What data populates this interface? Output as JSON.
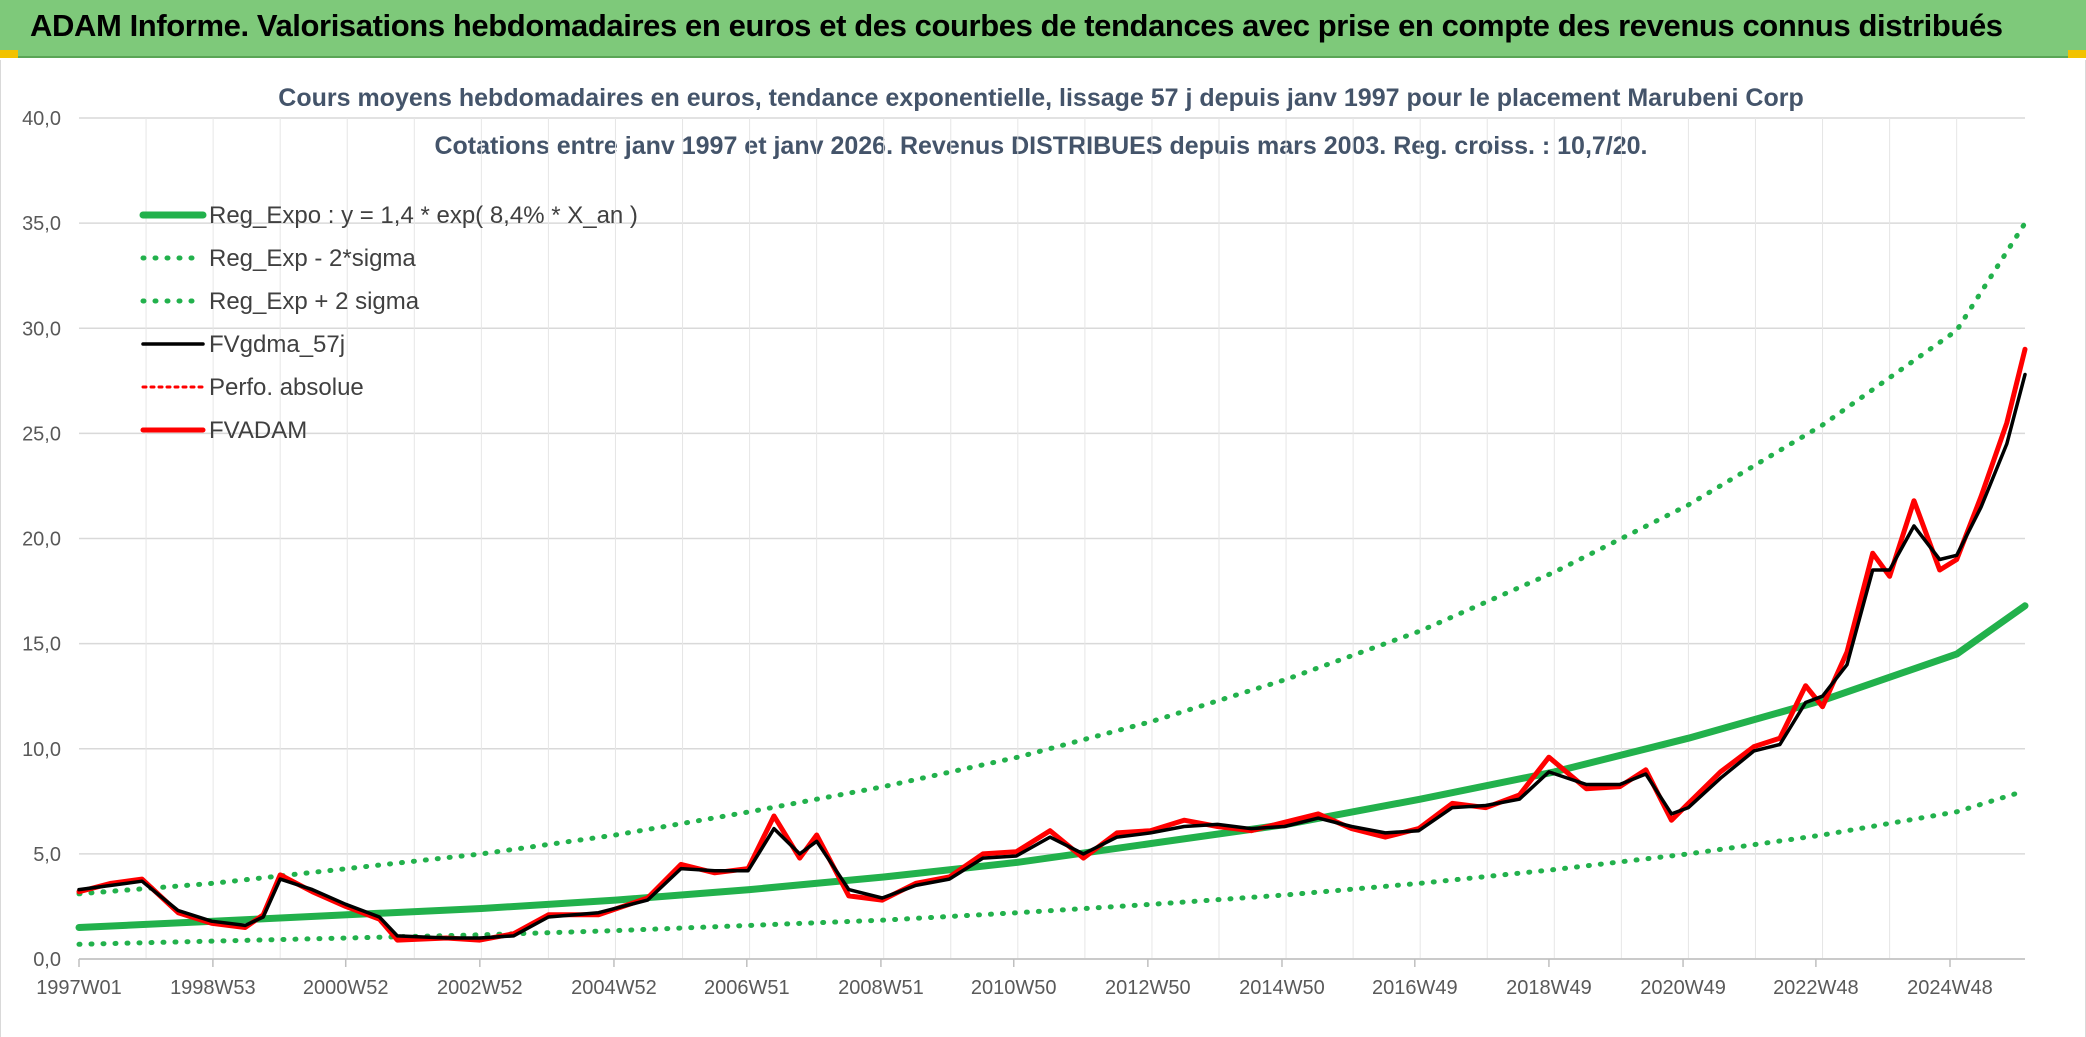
{
  "banner": {
    "title": "ADAM Informe. Valorisations hebdomadaires en euros et des courbes de tendances avec prise en compte des revenus connus distribués"
  },
  "colors": {
    "banner_bg": "#7ec97a",
    "reg_expo": "#22b14c",
    "sigma_lines": "#22b14c",
    "fvgdma": "#000000",
    "perfo": "#ff0000",
    "fvadam": "#ff0000",
    "title_text": "#44546a",
    "grid": "#d9d9d9"
  },
  "chart_data": {
    "type": "line",
    "title": "Cours moyens hebdomadaires en euros, tendance exponentielle, lissage 57 j depuis janv 1997 pour le placement Marubeni Corp",
    "subtitle": "Cotations entre janv 1997 et janv 2026. Revenus DISTRIBUES depuis mars 2003. Reg. croiss. : 10,7/20.",
    "xlabel": "",
    "ylabel": "",
    "ylim": [
      0,
      40
    ],
    "y_ticks": [
      "0,0",
      "5,0",
      "10,0",
      "15,0",
      "20,0",
      "25,0",
      "30,0",
      "35,0",
      "40,0"
    ],
    "x_range": [
      "1997W01",
      "2026W02"
    ],
    "x_ticks": [
      "1997W01",
      "1998W53",
      "2000W52",
      "2002W52",
      "2004W52",
      "2006W51",
      "2008W51",
      "2010W50",
      "2012W50",
      "2014W50",
      "2016W49",
      "2018W49",
      "2020W49",
      "2022W48",
      "2024W48"
    ],
    "grid": true,
    "legend_position": "top-left",
    "series": [
      {
        "name": "Reg_Expo : y = 1,4 * exp( 8,4% *  X_an )",
        "style": "solid-thick",
        "color": "#22b14c",
        "x": [
          "1997W01",
          "1999W01",
          "2001W01",
          "2003W01",
          "2005W01",
          "2007W01",
          "2009W01",
          "2011W01",
          "2013W01",
          "2015W01",
          "2017W01",
          "2019W01",
          "2021W01",
          "2023W01",
          "2025W01",
          "2026W02"
        ],
        "values": [
          1.5,
          1.8,
          2.1,
          2.4,
          2.8,
          3.3,
          3.9,
          4.6,
          5.5,
          6.4,
          7.6,
          8.9,
          10.5,
          12.3,
          14.5,
          16.8
        ]
      },
      {
        "name": "Reg_Exp - 2*sigma",
        "style": "dotted",
        "color": "#22b14c",
        "x": [
          "1997W01",
          "1999W01",
          "2001W01",
          "2003W01",
          "2005W01",
          "2007W01",
          "2009W01",
          "2011W01",
          "2013W01",
          "2015W01",
          "2017W01",
          "2019W01",
          "2021W01",
          "2023W01",
          "2025W01",
          "2026W02"
        ],
        "values": [
          0.7,
          0.85,
          1.0,
          1.15,
          1.35,
          1.6,
          1.85,
          2.2,
          2.6,
          3.05,
          3.6,
          4.25,
          5.0,
          5.9,
          7.0,
          8.0
        ]
      },
      {
        "name": "Reg_Exp + 2 sigma",
        "style": "dotted",
        "color": "#22b14c",
        "x": [
          "1997W01",
          "1999W01",
          "2001W01",
          "2003W01",
          "2005W01",
          "2007W01",
          "2009W01",
          "2011W01",
          "2013W01",
          "2015W01",
          "2017W01",
          "2019W01",
          "2021W01",
          "2023W01",
          "2025W01",
          "2026W02"
        ],
        "values": [
          3.1,
          3.6,
          4.3,
          5.0,
          5.9,
          7.0,
          8.2,
          9.6,
          11.3,
          13.3,
          15.6,
          18.4,
          21.6,
          25.4,
          29.9,
          35.0
        ]
      },
      {
        "name": "FVgdma_57j",
        "style": "solid",
        "color": "#000000",
        "x": [
          "1997W01",
          "1997W26",
          "1997W50",
          "1998W26",
          "1998W52",
          "1999W26",
          "1999W40",
          "2000W01",
          "2000W26",
          "2000W52",
          "2001W26",
          "2001W40",
          "2002W26",
          "2002W52",
          "2003W26",
          "2004W01",
          "2004W40",
          "2005W26",
          "2005W52",
          "2006W26",
          "2006W52",
          "2007W20",
          "2007W40",
          "2008W01",
          "2008W26",
          "2008W52",
          "2009W26",
          "2009W52",
          "2010W26",
          "2010W52",
          "2011W26",
          "2011W52",
          "2012W26",
          "2012W52",
          "2013W26",
          "2013W52",
          "2014W26",
          "2014W52",
          "2015W26",
          "2015W52",
          "2016W26",
          "2016W52",
          "2017W26",
          "2017W52",
          "2018W26",
          "2018W49",
          "2019W26",
          "2019W52",
          "2020W20",
          "2020W40",
          "2021W01",
          "2021W26",
          "2021W52",
          "2022W20",
          "2022W40",
          "2023W01",
          "2023W20",
          "2023W40",
          "2024W01",
          "2024W20",
          "2024W40",
          "2025W01",
          "2025W20",
          "2025W40",
          "2026W02"
        ],
        "values": [
          3.3,
          3.5,
          3.7,
          2.3,
          1.8,
          1.6,
          2.0,
          3.8,
          3.3,
          2.6,
          2.0,
          1.1,
          1.0,
          1.0,
          1.1,
          2.0,
          2.2,
          2.8,
          4.3,
          4.2,
          4.2,
          6.2,
          5.0,
          5.6,
          3.3,
          2.9,
          3.5,
          3.8,
          4.8,
          4.9,
          5.8,
          5.0,
          5.8,
          6.0,
          6.3,
          6.4,
          6.2,
          6.3,
          6.7,
          6.3,
          6.0,
          6.1,
          7.2,
          7.3,
          7.6,
          8.9,
          8.3,
          8.3,
          8.8,
          6.9,
          7.2,
          8.6,
          9.9,
          10.2,
          12.2,
          12.5,
          14.0,
          18.5,
          18.5,
          20.6,
          19.0,
          19.2,
          21.5,
          24.5,
          27.8
        ]
      },
      {
        "name": "Perfo. absolue",
        "style": "dotted",
        "color": "#ff0000",
        "x": [
          "1997W01",
          "1997W26",
          "1997W50",
          "1998W26",
          "1998W52",
          "1999W26",
          "1999W40",
          "2000W01",
          "2000W26",
          "2000W52",
          "2001W26",
          "2001W40",
          "2002W26",
          "2002W52",
          "2003W26",
          "2004W01",
          "2004W40",
          "2005W26",
          "2005W52",
          "2006W26",
          "2006W52",
          "2007W20",
          "2007W40",
          "2008W01",
          "2008W26",
          "2008W52",
          "2009W26",
          "2009W52",
          "2010W26",
          "2010W52",
          "2011W26",
          "2011W52",
          "2012W26",
          "2012W52",
          "2013W26",
          "2013W52",
          "2014W26",
          "2014W52",
          "2015W26",
          "2015W52",
          "2016W26",
          "2016W52",
          "2017W26",
          "2017W52",
          "2018W26",
          "2018W49",
          "2019W26",
          "2019W52",
          "2020W20",
          "2020W40",
          "2021W01",
          "2021W26",
          "2021W52",
          "2022W20",
          "2022W40",
          "2023W01",
          "2023W20",
          "2023W40",
          "2024W01",
          "2024W20",
          "2024W40",
          "2025W01",
          "2025W20",
          "2025W40",
          "2026W02"
        ],
        "values": [
          3.2,
          3.6,
          3.8,
          2.2,
          1.7,
          1.5,
          2.1,
          4.0,
          3.2,
          2.5,
          1.9,
          0.9,
          1.0,
          0.9,
          1.2,
          2.1,
          2.1,
          2.9,
          4.5,
          4.1,
          4.3,
          6.8,
          4.8,
          5.9,
          3.0,
          2.8,
          3.6,
          3.9,
          5.0,
          5.1,
          6.1,
          4.8,
          6.0,
          6.1,
          6.6,
          6.3,
          6.1,
          6.5,
          6.9,
          6.2,
          5.8,
          6.2,
          7.4,
          7.2,
          7.8,
          9.6,
          8.1,
          8.2,
          9.0,
          6.6,
          7.4,
          8.9,
          10.1,
          10.5,
          13.0,
          12.0,
          14.6,
          19.3,
          18.2,
          21.8,
          18.5,
          19.0,
          22.0,
          25.5,
          29.0
        ]
      },
      {
        "name": "FVADAM",
        "style": "solid-thick",
        "color": "#ff0000",
        "x": [
          "1997W01",
          "1997W26",
          "1997W50",
          "1998W26",
          "1998W52",
          "1999W26",
          "1999W40",
          "2000W01",
          "2000W26",
          "2000W52",
          "2001W26",
          "2001W40",
          "2002W26",
          "2002W52",
          "2003W26",
          "2004W01",
          "2004W40",
          "2005W26",
          "2005W52",
          "2006W26",
          "2006W52",
          "2007W20",
          "2007W40",
          "2008W01",
          "2008W26",
          "2008W52",
          "2009W26",
          "2009W52",
          "2010W26",
          "2010W52",
          "2011W26",
          "2011W52",
          "2012W26",
          "2012W52",
          "2013W26",
          "2013W52",
          "2014W26",
          "2014W52",
          "2015W26",
          "2015W52",
          "2016W26",
          "2016W52",
          "2017W26",
          "2017W52",
          "2018W26",
          "2018W49",
          "2019W26",
          "2019W52",
          "2020W20",
          "2020W40",
          "2021W01",
          "2021W26",
          "2021W52",
          "2022W20",
          "2022W40",
          "2023W01",
          "2023W20",
          "2023W40",
          "2024W01",
          "2024W20",
          "2024W40",
          "2025W01",
          "2025W20",
          "2025W40",
          "2026W02"
        ],
        "values": [
          3.2,
          3.6,
          3.8,
          2.2,
          1.7,
          1.5,
          2.1,
          4.0,
          3.2,
          2.5,
          1.9,
          0.9,
          1.0,
          0.9,
          1.2,
          2.1,
          2.1,
          2.9,
          4.5,
          4.1,
          4.3,
          6.8,
          4.8,
          5.9,
          3.0,
          2.8,
          3.6,
          3.9,
          5.0,
          5.1,
          6.1,
          4.8,
          6.0,
          6.1,
          6.6,
          6.3,
          6.1,
          6.5,
          6.9,
          6.2,
          5.8,
          6.2,
          7.4,
          7.2,
          7.8,
          9.6,
          8.1,
          8.2,
          9.0,
          6.6,
          7.4,
          8.9,
          10.1,
          10.5,
          13.0,
          12.0,
          14.6,
          19.3,
          18.2,
          21.8,
          18.5,
          19.0,
          22.0,
          25.5,
          29.0
        ]
      }
    ]
  }
}
